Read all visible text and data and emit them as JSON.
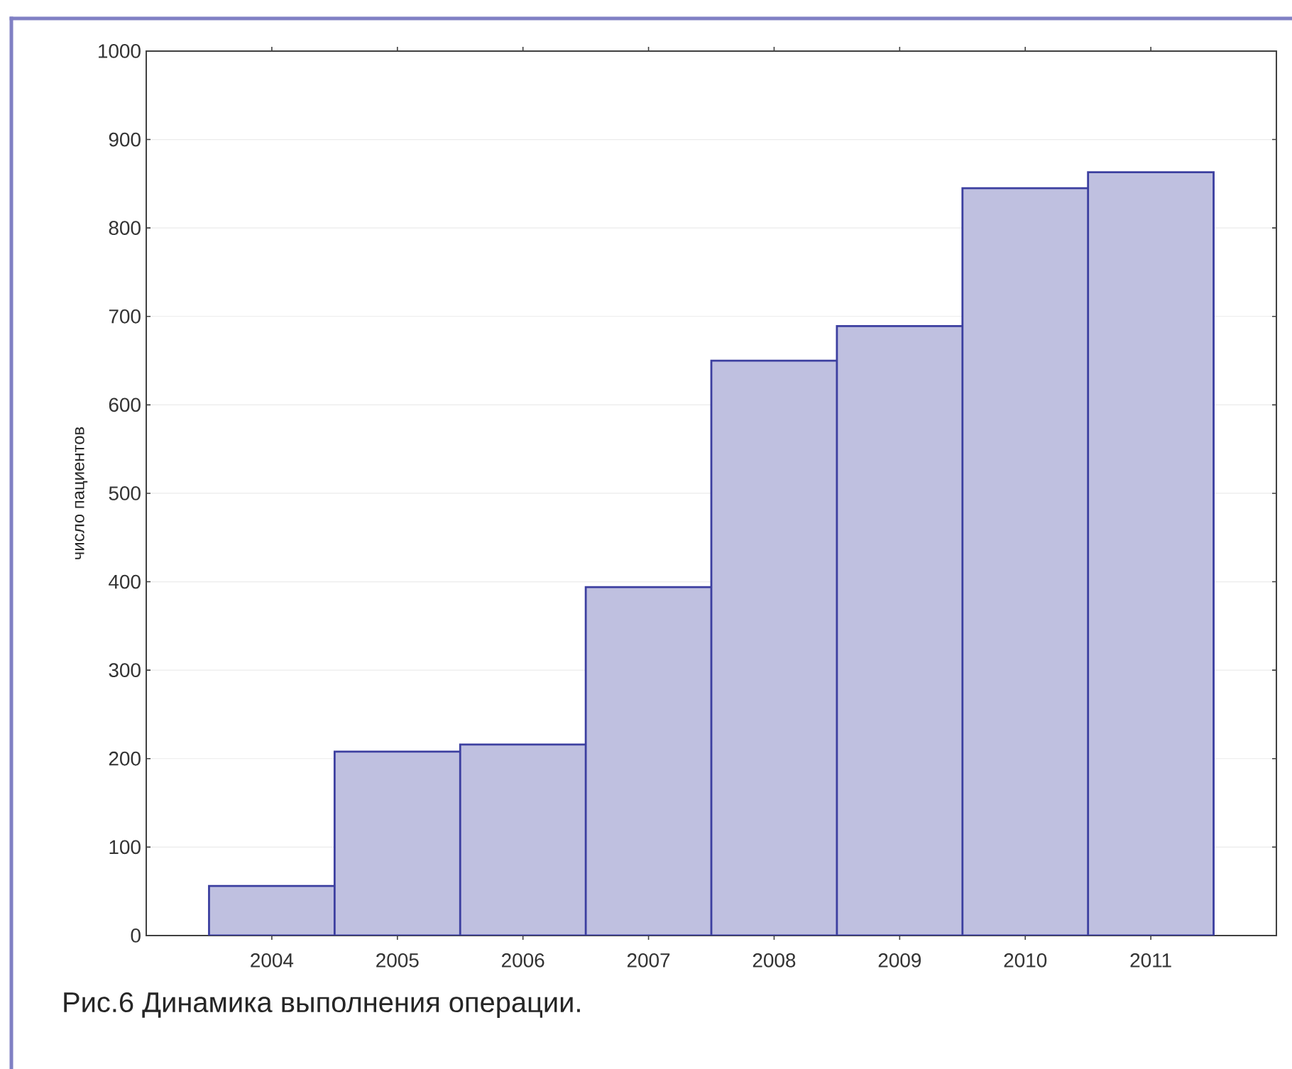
{
  "chart_data": {
    "type": "bar",
    "ylabel": "число пациентов",
    "categories": [
      "2004",
      "2005",
      "2006",
      "2007",
      "2008",
      "2009",
      "2010",
      "2011"
    ],
    "values": [
      56,
      208,
      216,
      394,
      650,
      689,
      845,
      863
    ],
    "color": "#bfc0e0",
    "ylim": [
      0,
      1000
    ],
    "yticks": [
      0,
      100,
      200,
      300,
      400,
      500,
      600,
      700,
      800,
      900,
      1000
    ],
    "grid": "y",
    "annotations": [
      "Рис.6  Динамика выполнения операции."
    ]
  }
}
